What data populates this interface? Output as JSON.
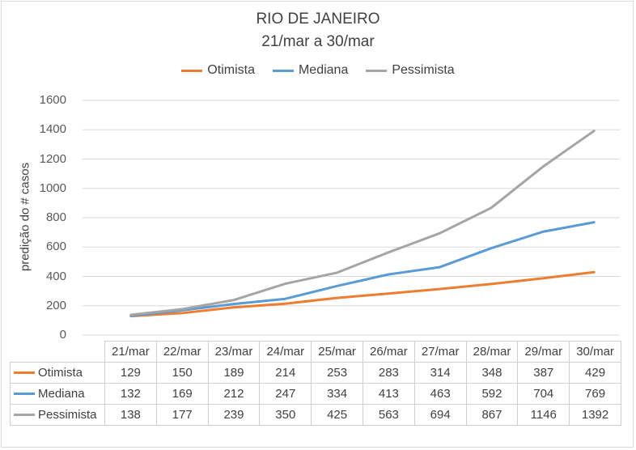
{
  "chart_data": {
    "type": "line",
    "title": "RIO DE JANEIRO",
    "subtitle": "21/mar a 30/mar",
    "xlabel": "",
    "ylabel": "predição do # casos",
    "ylim": [
      0,
      1600
    ],
    "yticks": [
      0,
      200,
      400,
      600,
      800,
      1000,
      1200,
      1400,
      1600
    ],
    "grid": true,
    "legend": "top",
    "categories": [
      "21/mar",
      "22/mar",
      "23/mar",
      "24/mar",
      "25/mar",
      "26/mar",
      "27/mar",
      "28/mar",
      "29/mar",
      "30/mar"
    ],
    "series": [
      {
        "name": "Otimista",
        "color": "#ed7d31",
        "values": [
          129,
          150,
          189,
          214,
          253,
          283,
          314,
          348,
          387,
          429
        ]
      },
      {
        "name": "Mediana",
        "color": "#5b9bd5",
        "values": [
          132,
          169,
          212,
          247,
          334,
          413,
          463,
          592,
          704,
          769
        ]
      },
      {
        "name": "Pessimista",
        "color": "#a5a5a5",
        "values": [
          138,
          177,
          239,
          350,
          425,
          563,
          694,
          867,
          1146,
          1392
        ]
      }
    ]
  }
}
